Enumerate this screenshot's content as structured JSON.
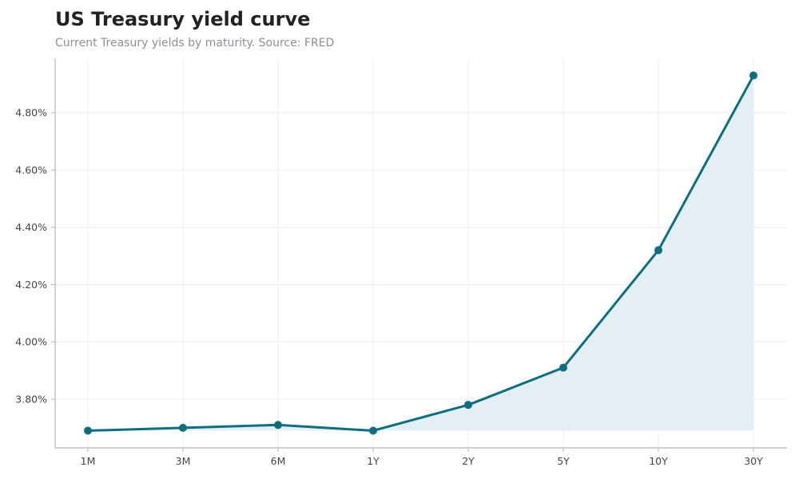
{
  "title": "US Treasury yield curve",
  "subtitle": "Current Treasury yields by maturity. Source: FRED",
  "colors": {
    "line": "#0e6e80",
    "area": "#e3eff2",
    "grid": "#ececec",
    "axis": "#b3b3b3"
  },
  "chart_data": {
    "type": "line",
    "title": "US Treasury yield curve",
    "subtitle": "Current Treasury yields by maturity. Source: FRED",
    "categories": [
      "1M",
      "3M",
      "6M",
      "1Y",
      "2Y",
      "5Y",
      "10Y",
      "30Y"
    ],
    "values": [
      3.69,
      3.7,
      3.71,
      3.69,
      3.78,
      3.91,
      4.32,
      4.93
    ],
    "ylim": [
      3.63,
      4.99
    ],
    "yticks": [
      3.8,
      4.0,
      4.2,
      4.4,
      4.6,
      4.8
    ],
    "ytick_labels": [
      "3.80%",
      "4.00%",
      "4.20%",
      "4.40%",
      "4.60%",
      "4.80%"
    ],
    "area_fill": true,
    "grid": true,
    "legend": false
  }
}
